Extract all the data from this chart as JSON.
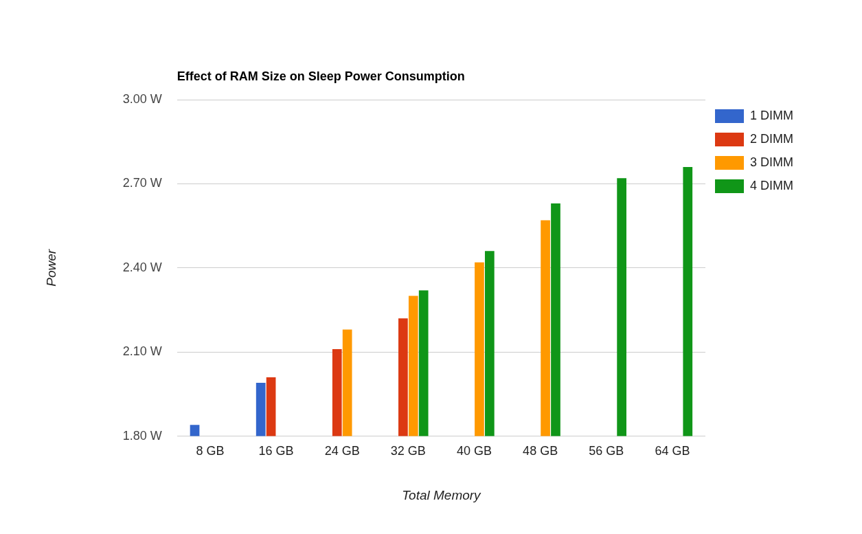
{
  "chart_data": {
    "type": "bar",
    "title": "Effect of RAM Size on Sleep Power Consumption",
    "xlabel": "Total Memory",
    "ylabel": "Power",
    "categories": [
      "8 GB",
      "16 GB",
      "24 GB",
      "32 GB",
      "40 GB",
      "48 GB",
      "56 GB",
      "64 GB"
    ],
    "series": [
      {
        "name": "1 DIMM",
        "color": "#3366cc",
        "values": [
          1.84,
          1.99,
          null,
          null,
          null,
          null,
          null,
          null
        ]
      },
      {
        "name": "2 DIMM",
        "color": "#dc3912",
        "values": [
          null,
          2.01,
          2.11,
          2.22,
          null,
          null,
          null,
          null
        ]
      },
      {
        "name": "3 DIMM",
        "color": "#ff9900",
        "values": [
          null,
          null,
          2.18,
          2.3,
          2.42,
          2.57,
          null,
          null
        ]
      },
      {
        "name": "4 DIMM",
        "color": "#109618",
        "values": [
          null,
          null,
          null,
          2.32,
          2.46,
          2.63,
          2.72,
          2.76
        ]
      }
    ],
    "ylim": [
      1.8,
      3.0
    ],
    "yticks": [
      {
        "value": 1.8,
        "label": "1.80 W"
      },
      {
        "value": 2.1,
        "label": "2.10 W"
      },
      {
        "value": 2.4,
        "label": "2.40 W"
      },
      {
        "value": 2.7,
        "label": "2.70 W"
      },
      {
        "value": 3.0,
        "label": "3.00 W"
      }
    ],
    "grid": "y",
    "legend": "top right"
  }
}
